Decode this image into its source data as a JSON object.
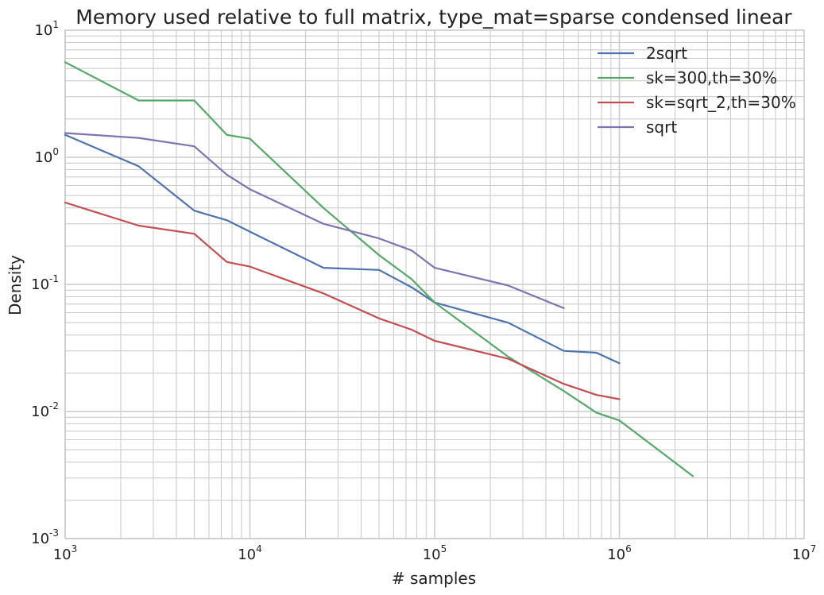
{
  "chart_data": {
    "type": "line",
    "title": "Memory used relative to full matrix, type_mat=sparse condensed linear",
    "xlabel": "# samples",
    "ylabel": "Density",
    "xscale": "log",
    "yscale": "log",
    "xlim": [
      1000,
      10000000
    ],
    "ylim": [
      0.001,
      10
    ],
    "grid": "on (major and minor)",
    "legend_position": "top-right",
    "x_ticks": [
      {
        "base": "10",
        "exp": "3"
      },
      {
        "base": "10",
        "exp": "4"
      },
      {
        "base": "10",
        "exp": "5"
      },
      {
        "base": "10",
        "exp": "6"
      },
      {
        "base": "10",
        "exp": "7"
      }
    ],
    "y_ticks": [
      {
        "base": "10",
        "exp": "-3"
      },
      {
        "base": "10",
        "exp": "-2"
      },
      {
        "base": "10",
        "exp": "-1"
      },
      {
        "base": "10",
        "exp": "0"
      },
      {
        "base": "10",
        "exp": "1"
      }
    ],
    "series": [
      {
        "name": "2sqrt",
        "color": "#4c72b0",
        "x": [
          1000,
          2500,
          5000,
          7500,
          10000,
          25000,
          50000,
          75000,
          100000,
          250000,
          500000,
          750000,
          1000000
        ],
        "y": [
          1.5,
          0.85,
          0.38,
          0.32,
          0.26,
          0.135,
          0.13,
          0.095,
          0.072,
          0.05,
          0.03,
          0.029,
          0.024
        ]
      },
      {
        "name": "sk=300,th=30%",
        "color": "#55a868",
        "x": [
          1000,
          2500,
          5000,
          7500,
          10000,
          25000,
          50000,
          75000,
          100000,
          250000,
          500000,
          750000,
          1000000,
          2500000
        ],
        "y": [
          5.6,
          2.8,
          2.8,
          1.5,
          1.4,
          0.4,
          0.17,
          0.11,
          0.072,
          0.027,
          0.0145,
          0.0098,
          0.0085,
          0.0031
        ]
      },
      {
        "name": "sk=sqrt_2,th=30%",
        "color": "#c44e52",
        "x": [
          1000,
          2500,
          5000,
          7500,
          10000,
          25000,
          50000,
          75000,
          100000,
          250000,
          500000,
          750000,
          1000000
        ],
        "y": [
          0.44,
          0.29,
          0.25,
          0.15,
          0.138,
          0.085,
          0.054,
          0.044,
          0.036,
          0.026,
          0.0165,
          0.0135,
          0.0125
        ]
      },
      {
        "name": "sqrt",
        "color": "#8172b2",
        "x": [
          1000,
          2500,
          5000,
          7500,
          10000,
          25000,
          50000,
          75000,
          100000,
          250000,
          500000
        ],
        "y": [
          1.55,
          1.42,
          1.22,
          0.73,
          0.56,
          0.3,
          0.23,
          0.185,
          0.135,
          0.098,
          0.065
        ]
      }
    ]
  }
}
